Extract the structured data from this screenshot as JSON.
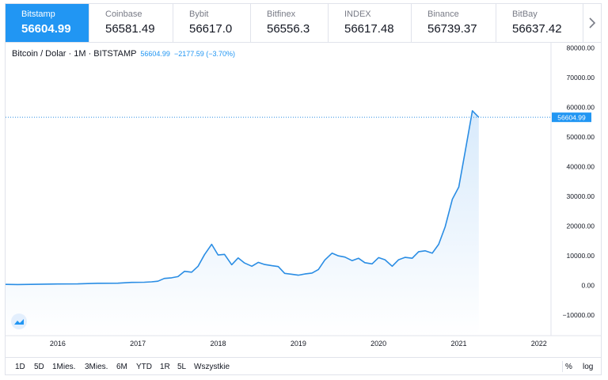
{
  "tabs": [
    {
      "name": "Bitstamp",
      "price": "56604.99",
      "active": true
    },
    {
      "name": "Coinbase",
      "price": "56581.49",
      "active": false
    },
    {
      "name": "Bybit",
      "price": "56617.0",
      "active": false
    },
    {
      "name": "Bitfinex",
      "price": "56556.3",
      "active": false
    },
    {
      "name": "INDEX",
      "price": "56617.48",
      "active": false
    },
    {
      "name": "Binance",
      "price": "56739.37",
      "active": false
    },
    {
      "name": "BitBay",
      "price": "56637.42",
      "active": false
    }
  ],
  "tabs_next_icon": "chevron-right-icon",
  "legend": {
    "title": "Bitcoin / Dolar · 1M · BITSTAMP",
    "last": "56604.99",
    "change": "−2177.59 (−3.70%)"
  },
  "price_label": "56604.99",
  "colors": {
    "accent": "#2196f3",
    "line": "#2a8de4",
    "area_top": "#d6e9fb",
    "grid": "#f0f3fa",
    "axis_text": "#131722"
  },
  "bottom_bar": {
    "periods": [
      "1D",
      "5D",
      "1Mies.",
      "3Mies.",
      "6M",
      "YTD",
      "1R",
      "5L",
      "Wszystkie"
    ],
    "percent": "%",
    "log": "log"
  },
  "chart_data": {
    "type": "area",
    "title": "Bitcoin / Dolar · 1M · BITSTAMP",
    "xlabel": "",
    "ylabel": "",
    "x_tick_labels": [
      "2016",
      "2017",
      "2018",
      "2019",
      "2020",
      "2021",
      "2022"
    ],
    "y_tick_labels": [
      "80000.00",
      "70000.00",
      "60000.00",
      "50000.00",
      "40000.00",
      "30000.00",
      "20000.00",
      "10000.00",
      "0.00",
      "−10000.00"
    ],
    "y_ticks": [
      80000,
      70000,
      60000,
      50000,
      40000,
      30000,
      20000,
      10000,
      0,
      -10000
    ],
    "x_ticks": [
      2016,
      2017,
      2018,
      2019,
      2020,
      2021,
      2022
    ],
    "ylim": [
      -17000,
      82000
    ],
    "xlim": [
      2015.35,
      2022.15
    ],
    "grid": false,
    "series": [
      {
        "x": [
          2015.35,
          2015.5,
          2015.75,
          2016.0,
          2016.25,
          2016.5,
          2016.75,
          2016.92,
          2017.08,
          2017.17,
          2017.25,
          2017.33,
          2017.42,
          2017.5,
          2017.58,
          2017.67,
          2017.75,
          2017.83,
          2017.92,
          2018.0,
          2018.08,
          2018.17,
          2018.25,
          2018.33,
          2018.42,
          2018.5,
          2018.58,
          2018.67,
          2018.75,
          2018.83,
          2018.92,
          2019.0,
          2019.08,
          2019.17,
          2019.25,
          2019.33,
          2019.42,
          2019.5,
          2019.58,
          2019.67,
          2019.75,
          2019.83,
          2019.92,
          2020.0,
          2020.08,
          2020.17,
          2020.25,
          2020.33,
          2020.42,
          2020.5,
          2020.58,
          2020.67,
          2020.75,
          2020.83,
          2020.92,
          2021.0,
          2021.08,
          2021.17,
          2021.25
        ],
        "values": [
          300,
          230,
          320,
          430,
          450,
          670,
          700,
          960,
          1000,
          1150,
          1350,
          2300,
          2500,
          2900,
          4700,
          4400,
          6400,
          10300,
          13800,
          10200,
          10400,
          6900,
          9200,
          7500,
          6400,
          7700,
          7000,
          6600,
          6300,
          4000,
          3700,
          3400,
          3800,
          4100,
          5300,
          8500,
          10800,
          9900,
          9500,
          8300,
          9100,
          7600,
          7200,
          9300,
          8600,
          6400,
          8600,
          9400,
          9100,
          11300,
          11600,
          10800,
          13800,
          19700,
          29000,
          33100,
          45100,
          58800,
          56604.99
        ]
      }
    ]
  }
}
